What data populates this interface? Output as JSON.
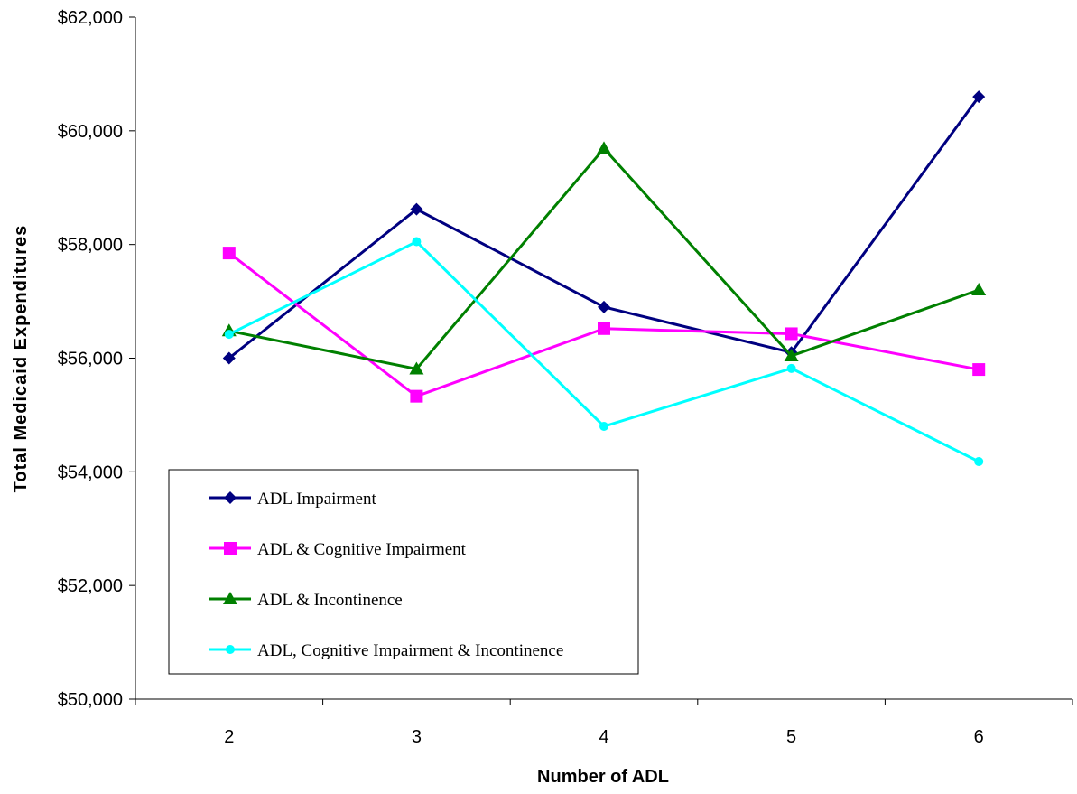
{
  "chart_data": {
    "type": "line",
    "title": "",
    "xlabel": "Number of ADL",
    "ylabel": "Total Medicaid Expenditures",
    "categories": [
      "2",
      "3",
      "4",
      "5",
      "6"
    ],
    "ylim": [
      50000,
      62000
    ],
    "yticks": [
      50000,
      52000,
      54000,
      56000,
      58000,
      60000,
      62000
    ],
    "ytick_labels": [
      "$50,000",
      "$52,000",
      "$54,000",
      "$56,000",
      "$58,000",
      "$60,000",
      "$62,000"
    ],
    "grid": false,
    "legend_position": "bottom-left",
    "series": [
      {
        "name": "ADL Impairment",
        "color": "#000080",
        "marker": "diamond",
        "values": [
          56000,
          58620,
          56900,
          56100,
          60600
        ]
      },
      {
        "name": "ADL & Cognitive Impairment",
        "color": "#ff00ff",
        "marker": "square",
        "values": [
          57850,
          55330,
          56520,
          56430,
          55800
        ]
      },
      {
        "name": "ADL & Incontinence",
        "color": "#008000",
        "marker": "triangle",
        "values": [
          56480,
          55810,
          59690,
          56040,
          57200
        ]
      },
      {
        "name": "ADL, Cognitive Impairment & Incontinence",
        "color": "#00ffff",
        "marker": "circle",
        "values": [
          56420,
          58050,
          54800,
          55820,
          54180
        ]
      }
    ]
  }
}
